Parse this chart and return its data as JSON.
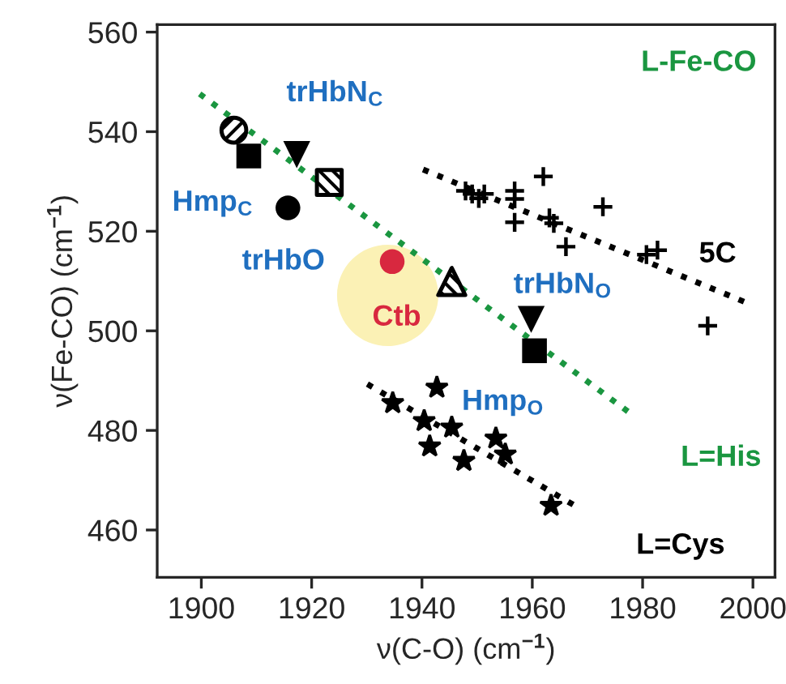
{
  "chart_data": {
    "type": "scatter",
    "xlabel": "ν(C-O) (cm$^{−1}$)",
    "ylabel": "ν(Fe-CO) (cm$^{−1}$)",
    "xlim": [
      1892,
      2004
    ],
    "ylim": [
      450.5,
      561.5
    ],
    "xticks": [
      1900,
      1920,
      1940,
      1960,
      1980,
      2000
    ],
    "yticks": [
      460,
      480,
      500,
      520,
      540,
      560
    ],
    "grid": false,
    "legend": false,
    "series": [
      {
        "type": "line",
        "color": "#1a9640",
        "line_style": "dotted",
        "x": [
          1899.7,
          1978.3
        ],
        "values": [
          547.6,
          483.0
        ]
      },
      {
        "type": "line",
        "color": "#000000",
        "line_style": "dotted",
        "x": [
          1940.2,
          1998.5
        ],
        "values": [
          532.4,
          505.8
        ]
      },
      {
        "type": "line",
        "color": "#000000",
        "line_style": "dotted",
        "x": [
          1930.1,
          1967.7
        ],
        "values": [
          489.3,
          464.9
        ]
      },
      {
        "color": "#000000",
        "marker": "circle",
        "x": [
          1905.9
        ],
        "values": [
          540.3
        ]
      },
      {
        "color": "#000000",
        "marker": "square",
        "x": [
          1908.6
        ],
        "values": [
          535.1
        ]
      },
      {
        "color": "#000000",
        "marker": "triangle_down",
        "x": [
          1917.3
        ],
        "values": [
          535.4
        ]
      },
      {
        "color": "#000000",
        "marker": "square",
        "x": [
          1923.2
        ],
        "values": [
          529.8
        ]
      },
      {
        "color": "#000000",
        "marker": "circle",
        "x": [
          1915.7
        ],
        "values": [
          524.7
        ]
      },
      {
        "color": "#d8283f",
        "marker": "circle",
        "x": [
          1934.6
        ],
        "values": [
          513.9
        ]
      },
      {
        "color": "#000000",
        "marker": "triangle",
        "x": [
          1945.4
        ],
        "values": [
          509.9
        ]
      },
      {
        "color": "#000000",
        "marker": "triangle_down",
        "x": [
          1959.8
        ],
        "values": [
          502.3
        ]
      },
      {
        "color": "#000000",
        "marker": "square",
        "x": [
          1960.4
        ],
        "values": [
          496.0
        ]
      },
      {
        "color": "#000000",
        "marker": "cross",
        "x": [
          1947.9,
          1949.1,
          1950.3,
          1951.3,
          1956.8,
          1956.8,
          1956.8,
          1962.0,
          1963.1,
          1963.9,
          1966.1,
          1972.8,
          1980.7,
          1982.7,
          1991.8
        ],
        "values": [
          528.1,
          527.5,
          526.6,
          527.5,
          528.1,
          526.5,
          521.8,
          531.0,
          522.7,
          521.6,
          516.9,
          524.9,
          515.3,
          516.2,
          501.0
        ]
      },
      {
        "color": "#000000",
        "marker": "star",
        "x": [
          1934.7,
          1940.4,
          1941.4,
          1942.7,
          1945.4,
          1947.6,
          1953.4,
          1955.1,
          1963.4
        ],
        "values": [
          485.5,
          481.9,
          476.8,
          488.6,
          480.6,
          473.9,
          478.4,
          475.2,
          464.9
        ]
      }
    ],
    "annotations": [
      {
        "text": "trHbN$_{C}$",
        "x": 1917.3,
        "y": 535.4
      },
      {
        "text": "Hmp$_{C}$",
        "x": 1908.6,
        "y": 535.1
      },
      {
        "text": "trHbO",
        "x": 1915.7,
        "y": 524.7
      },
      {
        "text": "Ctb",
        "x": 1934.6,
        "y": 513.9
      },
      {
        "text": "trHbN$_{O}$",
        "x": 1959.8,
        "y": 502.3
      },
      {
        "text": "Hmp$_{O}$",
        "x": 1960.4,
        "y": 496.0
      },
      "L-Fe-CO",
      {
        "text": "5C",
        "x": 1998.5,
        "y": 505.8
      },
      {
        "text": "L=His",
        "x": 1978.3,
        "y": 483.0
      },
      {
        "text": "L=Cys",
        "x": 1967.7,
        "y": 464.9
      }
    ]
  }
}
